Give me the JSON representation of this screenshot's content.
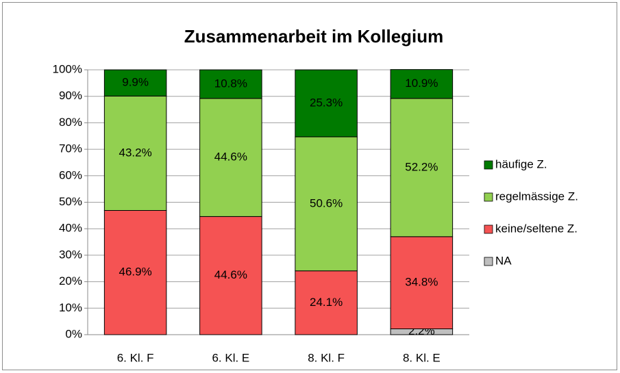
{
  "chart_data": {
    "type": "stacked_bar",
    "title": "Zusammenarbeit im Kollegium",
    "categories": [
      "6. Kl. F",
      "6. Kl. E",
      "8. Kl. F",
      "8. Kl. E"
    ],
    "series": [
      {
        "name": "NA",
        "color": "#bfbfbf",
        "values": [
          0,
          0,
          0,
          2.2
        ],
        "value_labels": [
          null,
          null,
          null,
          "2.2%"
        ]
      },
      {
        "name": "keine/seltene Z.",
        "color": "#f55353",
        "values": [
          46.9,
          44.6,
          24.1,
          34.8
        ],
        "value_labels": [
          "46.9%",
          "44.6%",
          "24.1%",
          "34.8%"
        ]
      },
      {
        "name": "regelmässige Z.",
        "color": "#92d050",
        "values": [
          43.2,
          44.6,
          50.6,
          52.2
        ],
        "value_labels": [
          "43.2%",
          "44.6%",
          "50.6%",
          "52.2%"
        ]
      },
      {
        "name": "häufige Z.",
        "color": "#007a00",
        "values": [
          9.9,
          10.8,
          25.3,
          10.9
        ],
        "value_labels": [
          "9.9%",
          "10.8%",
          "25.3%",
          "10.9%"
        ]
      }
    ],
    "ylim": [
      0,
      100
    ],
    "yticks": [
      {
        "value": 0,
        "label": "0%"
      },
      {
        "value": 10,
        "label": "10%"
      },
      {
        "value": 20,
        "label": "20%"
      },
      {
        "value": 30,
        "label": "30%"
      },
      {
        "value": 40,
        "label": "40%"
      },
      {
        "value": 50,
        "label": "50%"
      },
      {
        "value": 60,
        "label": "60%"
      },
      {
        "value": 70,
        "label": "70%"
      },
      {
        "value": 80,
        "label": "80%"
      },
      {
        "value": 90,
        "label": "90%"
      },
      {
        "value": 100,
        "label": "100%"
      }
    ],
    "grid": true,
    "legend": "right"
  }
}
